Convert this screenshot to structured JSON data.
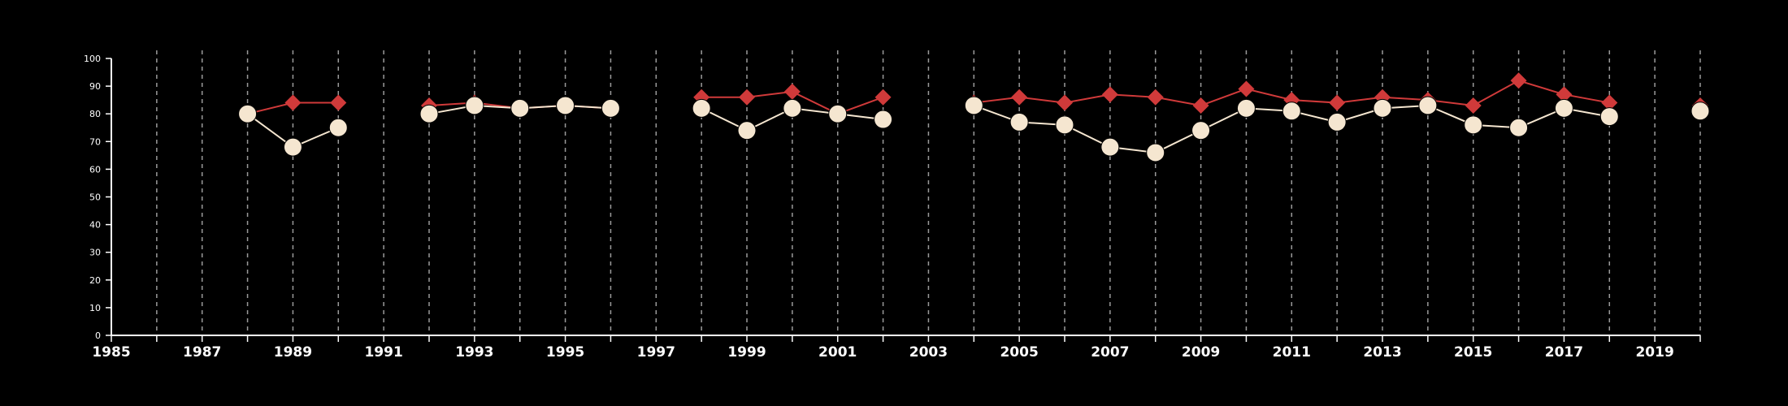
{
  "chart_data": {
    "type": "line",
    "title": "",
    "xlabel": "",
    "ylabel": "",
    "xlim": [
      1985,
      2020
    ],
    "ylim": [
      0,
      100
    ],
    "x_ticks": [
      "1985",
      "1987",
      "1989",
      "1991",
      "1993",
      "1995",
      "1997",
      "1999",
      "2001",
      "2003",
      "2005",
      "2007",
      "2009",
      "2011",
      "2013",
      "2015",
      "2017",
      "2019"
    ],
    "y_ticks": [
      "0",
      "10",
      "20",
      "30",
      "40",
      "50",
      "60",
      "70",
      "80",
      "90",
      "100"
    ],
    "vertical_gridlines_each_year": true,
    "background": "#000000",
    "series": [
      {
        "color": "#d03a3a",
        "marker": "diamond",
        "points": [
          {
            "x": 1988,
            "y": 80
          },
          {
            "x": 1989,
            "y": 84
          },
          {
            "x": 1990,
            "y": 84
          },
          {
            "x": 1992,
            "y": 83
          },
          {
            "x": 1993,
            "y": 84
          },
          {
            "x": 1994,
            "y": 82
          },
          {
            "x": 1995,
            "y": 83
          },
          {
            "x": 1996,
            "y": 82
          },
          {
            "x": 1998,
            "y": 86
          },
          {
            "x": 1999,
            "y": 86
          },
          {
            "x": 2000,
            "y": 88
          },
          {
            "x": 2001,
            "y": 80
          },
          {
            "x": 2002,
            "y": 86
          },
          {
            "x": 2004,
            "y": 84
          },
          {
            "x": 2005,
            "y": 86
          },
          {
            "x": 2006,
            "y": 84
          },
          {
            "x": 2007,
            "y": 87
          },
          {
            "x": 2008,
            "y": 86
          },
          {
            "x": 2009,
            "y": 83
          },
          {
            "x": 2010,
            "y": 89
          },
          {
            "x": 2011,
            "y": 85
          },
          {
            "x": 2012,
            "y": 84
          },
          {
            "x": 2013,
            "y": 86
          },
          {
            "x": 2014,
            "y": 85
          },
          {
            "x": 2015,
            "y": 83
          },
          {
            "x": 2016,
            "y": 92
          },
          {
            "x": 2017,
            "y": 87
          },
          {
            "x": 2018,
            "y": 84
          },
          {
            "x": 2020,
            "y": 83
          }
        ]
      },
      {
        "color": "#f5e6d0",
        "marker": "circle",
        "points": [
          {
            "x": 1988,
            "y": 80
          },
          {
            "x": 1989,
            "y": 68
          },
          {
            "x": 1990,
            "y": 75
          },
          {
            "x": 1992,
            "y": 80
          },
          {
            "x": 1993,
            "y": 83
          },
          {
            "x": 1994,
            "y": 82
          },
          {
            "x": 1995,
            "y": 83
          },
          {
            "x": 1996,
            "y": 82
          },
          {
            "x": 1998,
            "y": 82
          },
          {
            "x": 1999,
            "y": 74
          },
          {
            "x": 2000,
            "y": 82
          },
          {
            "x": 2001,
            "y": 80
          },
          {
            "x": 2002,
            "y": 78
          },
          {
            "x": 2004,
            "y": 83
          },
          {
            "x": 2005,
            "y": 77
          },
          {
            "x": 2006,
            "y": 76
          },
          {
            "x": 2007,
            "y": 68
          },
          {
            "x": 2008,
            "y": 66
          },
          {
            "x": 2009,
            "y": 74
          },
          {
            "x": 2010,
            "y": 82
          },
          {
            "x": 2011,
            "y": 81
          },
          {
            "x": 2012,
            "y": 77
          },
          {
            "x": 2013,
            "y": 82
          },
          {
            "x": 2014,
            "y": 83
          },
          {
            "x": 2015,
            "y": 76
          },
          {
            "x": 2016,
            "y": 75
          },
          {
            "x": 2017,
            "y": 82
          },
          {
            "x": 2018,
            "y": 79
          },
          {
            "x": 2020,
            "y": 81
          }
        ]
      }
    ]
  }
}
